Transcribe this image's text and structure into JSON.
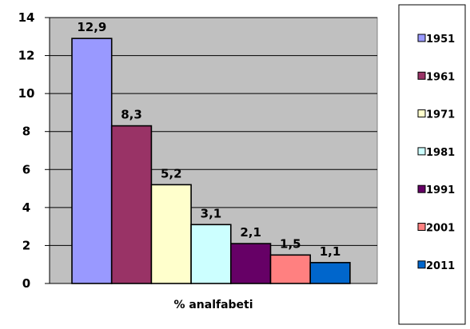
{
  "chart_data": {
    "type": "bar",
    "categories": [
      "% analfabeti"
    ],
    "xlabel": "% analfabeti",
    "ylim": [
      0,
      14
    ],
    "yticks": [
      0,
      2,
      4,
      6,
      8,
      10,
      12,
      14
    ],
    "grid": true,
    "plot_background": "#c0c0c0",
    "legend_position": "right",
    "series": [
      {
        "name": "1951",
        "value": 12.9,
        "label": "12,9",
        "color": "#9999ff"
      },
      {
        "name": "1961",
        "value": 8.3,
        "label": "8,3",
        "color": "#993366"
      },
      {
        "name": "1971",
        "value": 5.2,
        "label": "5,2",
        "color": "#ffffcc"
      },
      {
        "name": "1981",
        "value": 3.1,
        "label": "3,1",
        "color": "#ccffff"
      },
      {
        "name": "1991",
        "value": 2.1,
        "label": "2,1",
        "color": "#660066"
      },
      {
        "name": "2001",
        "value": 1.5,
        "label": "1,5",
        "color": "#ff8080"
      },
      {
        "name": "2011",
        "value": 1.1,
        "label": "1,1",
        "color": "#0066cc"
      }
    ]
  }
}
